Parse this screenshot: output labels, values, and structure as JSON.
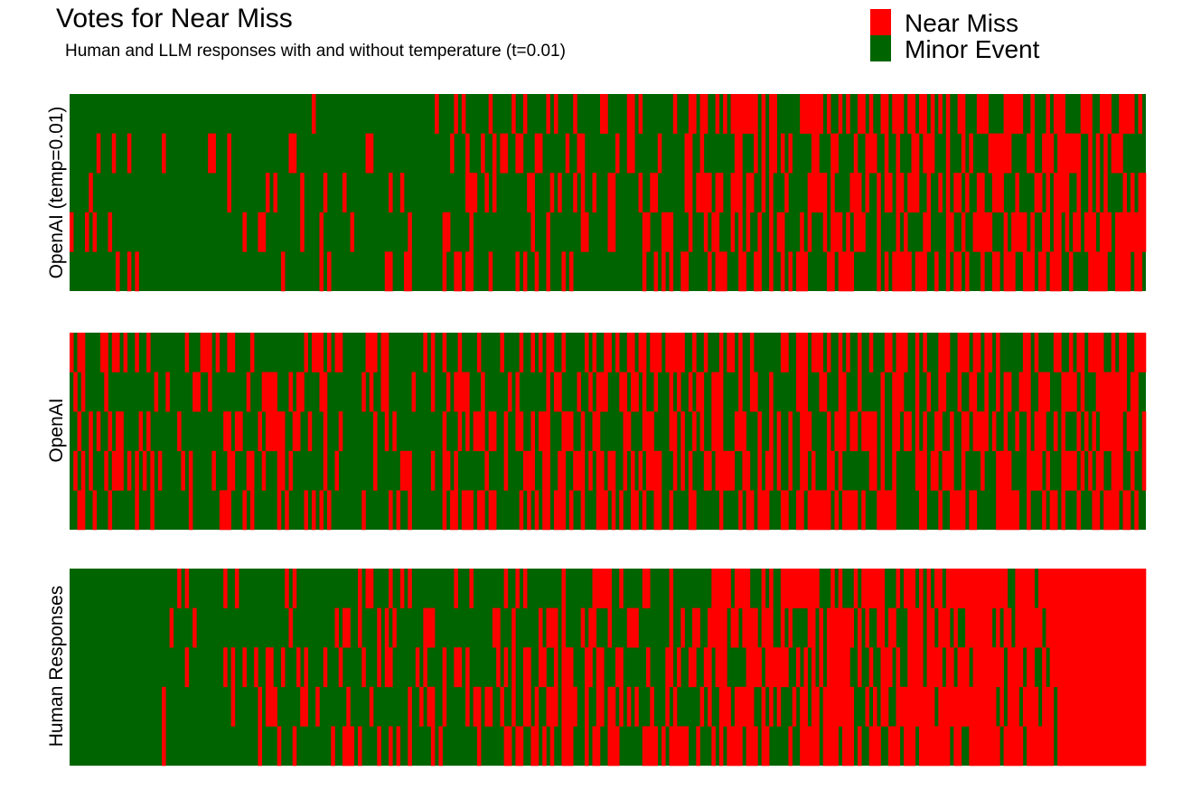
{
  "chart_data": {
    "type": "heatmap",
    "title": "Votes for Near Miss",
    "subtitle": "Human and LLM responses with and without temperature (t=0.01)",
    "legend": {
      "position": "top-right",
      "entries": [
        {
          "label": "Near Miss",
          "color": "#FF0000"
        },
        {
          "label": "Minor Event",
          "color": "#006400"
        }
      ]
    },
    "grid": false,
    "panels": [
      {
        "label": "OpenAI (temp=0.01)",
        "votes_per_item": 5,
        "items": 280,
        "near_miss_share_by_segment": [
          0.08,
          0.05,
          0.12,
          0.1,
          0.3,
          0.3,
          0.35,
          0.45,
          0.4,
          0.45,
          0.5,
          0.6
        ],
        "seed": 11
      },
      {
        "label": "OpenAI",
        "votes_per_item": 5,
        "items": 280,
        "near_miss_share_by_segment": [
          0.3,
          0.2,
          0.3,
          0.2,
          0.4,
          0.45,
          0.45,
          0.5,
          0.5,
          0.5,
          0.5,
          0.55
        ],
        "seed": 23
      },
      {
        "label": "Human Responses",
        "votes_per_item": 5,
        "items": 280,
        "near_miss_share_by_segment": [
          0.0,
          0.1,
          0.2,
          0.25,
          0.3,
          0.4,
          0.45,
          0.6,
          0.65,
          0.7,
          0.8,
          1.0
        ],
        "seed": 37
      }
    ]
  }
}
